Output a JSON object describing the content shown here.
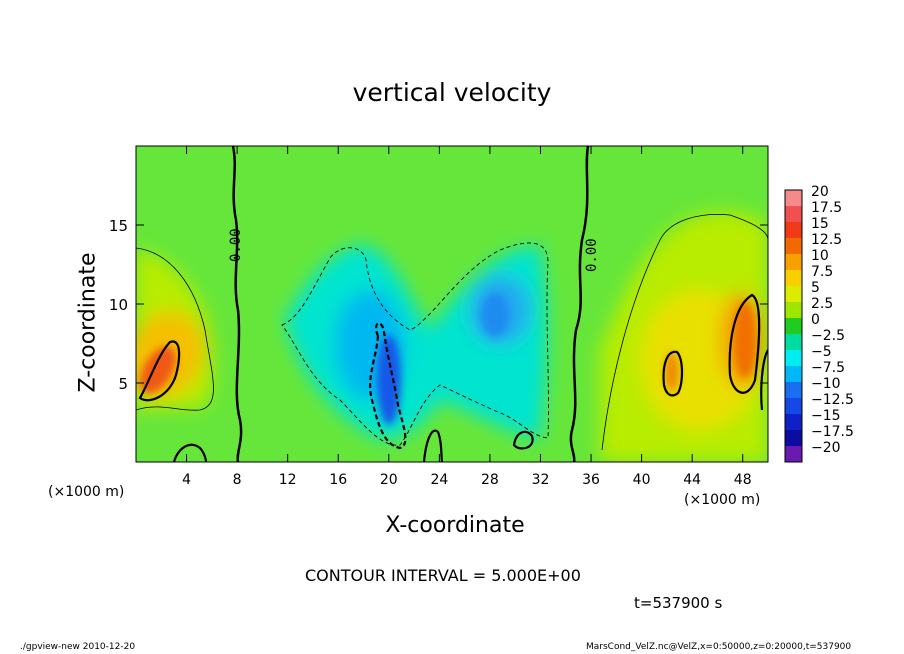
{
  "page": {
    "title": "vertical velocity",
    "contour_interval": "CONTOUR INTERVAL = 5.000E+00",
    "time_label": "t=537900 s",
    "footer_left": "./gpview-new  2010-12-20",
    "footer_right": "MarsCond_VelZ.nc@VelZ,x=0:50000,z=0:20000,t=537900"
  },
  "chart_data": {
    "type": "heatmap",
    "title": "vertical velocity",
    "xlabel": "X-coordinate",
    "ylabel": "Z-coordinate",
    "x_unit": "(×1000 m)",
    "xlim": [
      0,
      50
    ],
    "ylim": [
      0,
      20
    ],
    "x_ticks": [
      4,
      8,
      12,
      16,
      20,
      24,
      28,
      32,
      36,
      40,
      44,
      48
    ],
    "y_ticks": [
      5,
      10,
      15
    ],
    "contour_labels": [
      {
        "text": "0.00",
        "x": 8.6,
        "y": 13.5
      },
      {
        "text": "0.00",
        "x": 36.0,
        "y": 13.0
      }
    ],
    "colorbar": {
      "levels": [
        20,
        17.5,
        15,
        12.5,
        10,
        7.5,
        5,
        2.5,
        0,
        -2.5,
        -5,
        -7.5,
        -10,
        -12.5,
        -15,
        -17.5,
        -20
      ],
      "level_labels": [
        "20",
        "17.5",
        "15",
        "12.5",
        "10",
        "7.5",
        "5",
        "2.5",
        "0",
        "−2.5",
        "−5",
        "−7.5",
        "−10",
        "−12.5",
        "−15",
        "−17.5",
        "−20"
      ],
      "colors": [
        "#f58a8a",
        "#f05050",
        "#f03a18",
        "#f06a00",
        "#f8a000",
        "#f8d000",
        "#dcec00",
        "#9ce600",
        "#20cc20",
        "#00dca0",
        "#00eeee",
        "#00b8f8",
        "#1870f0",
        "#1448e8",
        "#1020c8",
        "#0c0ca0",
        "#6a1ab0"
      ]
    },
    "background_value": 1.5,
    "features": [
      {
        "kind": "updraft",
        "x": 2,
        "z": 6.5,
        "peak": 14
      },
      {
        "kind": "updraft",
        "x": 48,
        "z": 7.5,
        "peak": 12
      },
      {
        "kind": "updraft",
        "x": 42,
        "z": 6,
        "peak": 10
      },
      {
        "kind": "downdraft",
        "x": 19.5,
        "z": 5,
        "peak": -12
      },
      {
        "kind": "downdraft",
        "x": 29,
        "z": 10,
        "peak": -8
      }
    ]
  }
}
